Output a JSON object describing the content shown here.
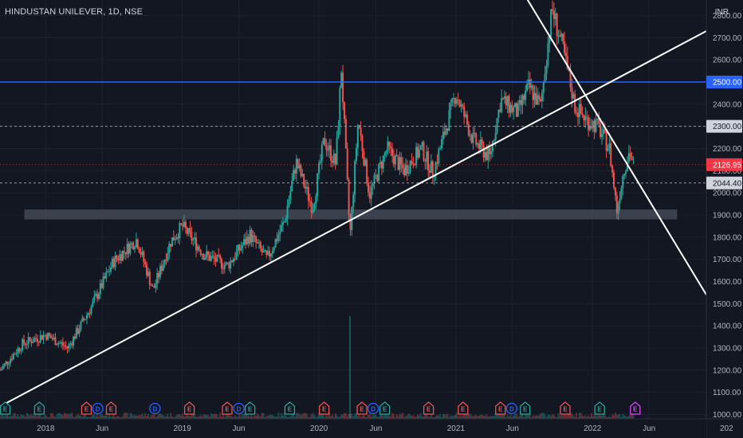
{
  "header": {
    "symbol_title": "HINDUSTAN UNILEVER, 1D, NSE",
    "currency": "INR"
  },
  "colors": {
    "background": "#131722",
    "grid": "#1e222d",
    "up": "#26a69a",
    "down": "#ef5350",
    "axis_text": "#b2b5be",
    "trendline": "#ffffff",
    "horizontal_line": "#2962ff",
    "support_zone": "#4a4f5c",
    "dashed_level": "#9598a1",
    "last_price_badge": "#f23645"
  },
  "chart_data": {
    "type": "candlestick",
    "symbol": "HINDUSTAN UNILEVER",
    "interval": "1D",
    "exchange": "NSE",
    "currency": "INR",
    "y_axis": {
      "ticks": [
        "1000.00",
        "1100.00",
        "1200.00",
        "1300.00",
        "1400.00",
        "1500.00",
        "1600.00",
        "1700.00",
        "1800.00",
        "1900.00",
        "2000.00",
        "2100.00",
        "2200.00",
        "2300.00",
        "2400.00",
        "2500.00",
        "2600.00",
        "2700.00",
        "2800.00"
      ],
      "range": [
        980,
        2870
      ]
    },
    "x_axis": {
      "ticks": [
        "2018",
        "Jun",
        "2019",
        "Jun",
        "2020",
        "Jun",
        "2021",
        "Jun",
        "2022",
        "Jun",
        "202"
      ],
      "range": [
        "2017-09-01",
        "2022-11-01"
      ]
    },
    "price_series": [
      {
        "date": "2017-09-01",
        "close": 1200
      },
      {
        "date": "2017-11-01",
        "close": 1320
      },
      {
        "date": "2018-01-01",
        "close": 1360
      },
      {
        "date": "2018-03-01",
        "close": 1300
      },
      {
        "date": "2018-05-01",
        "close": 1480
      },
      {
        "date": "2018-07-01",
        "close": 1690
      },
      {
        "date": "2018-09-01",
        "close": 1790
      },
      {
        "date": "2018-10-15",
        "close": 1560
      },
      {
        "date": "2018-12-01",
        "close": 1780
      },
      {
        "date": "2019-01-01",
        "close": 1850
      },
      {
        "date": "2019-03-01",
        "close": 1720
      },
      {
        "date": "2019-05-01",
        "close": 1670
      },
      {
        "date": "2019-07-01",
        "close": 1810
      },
      {
        "date": "2019-08-15",
        "close": 1700
      },
      {
        "date": "2019-10-01",
        "close": 1870
      },
      {
        "date": "2019-11-01",
        "close": 2140
      },
      {
        "date": "2019-12-15",
        "close": 1930
      },
      {
        "date": "2020-01-15",
        "close": 2240
      },
      {
        "date": "2020-02-15",
        "close": 2130
      },
      {
        "date": "2020-03-01",
        "close": 2560
      },
      {
        "date": "2020-03-24",
        "close": 1800
      },
      {
        "date": "2020-04-15",
        "close": 2330
      },
      {
        "date": "2020-05-15",
        "close": 1990
      },
      {
        "date": "2020-07-01",
        "close": 2200
      },
      {
        "date": "2020-08-15",
        "close": 2100
      },
      {
        "date": "2020-10-01",
        "close": 2200
      },
      {
        "date": "2020-11-01",
        "close": 2090
      },
      {
        "date": "2021-01-01",
        "close": 2450
      },
      {
        "date": "2021-02-15",
        "close": 2240
      },
      {
        "date": "2021-04-01",
        "close": 2160
      },
      {
        "date": "2021-05-01",
        "close": 2420
      },
      {
        "date": "2021-06-15",
        "close": 2360
      },
      {
        "date": "2021-07-15",
        "close": 2480
      },
      {
        "date": "2021-08-15",
        "close": 2390
      },
      {
        "date": "2021-09-15",
        "close": 2830
      },
      {
        "date": "2021-10-15",
        "close": 2640
      },
      {
        "date": "2021-11-15",
        "close": 2390
      },
      {
        "date": "2021-12-15",
        "close": 2330
      },
      {
        "date": "2022-01-15",
        "close": 2300
      },
      {
        "date": "2022-02-15",
        "close": 2200
      },
      {
        "date": "2022-03-07",
        "close": 1920
      },
      {
        "date": "2022-03-25",
        "close": 2100
      },
      {
        "date": "2022-04-10",
        "close": 2190
      },
      {
        "date": "2022-04-20",
        "close": 2126.95
      }
    ],
    "drawings": [
      {
        "kind": "trendline",
        "from": {
          "date": "2017-08-25",
          "price": 1030
        },
        "to": {
          "date": "2022-11-01",
          "price": 2730
        },
        "color": "#ffffff"
      },
      {
        "kind": "trendline",
        "from": {
          "date": "2021-07-01",
          "price": 2900
        },
        "to": {
          "date": "2022-11-01",
          "price": 1540
        },
        "color": "#ffffff"
      },
      {
        "kind": "horizontal_line",
        "price": 2500,
        "label": "2500.00",
        "color": "#2962ff"
      },
      {
        "kind": "horizontal_line_dashed",
        "price": 2300,
        "label": "2300.00"
      },
      {
        "kind": "horizontal_line_dashed",
        "price": 2044.4,
        "label": "2044.40"
      },
      {
        "kind": "rectangle_zone",
        "from_date": "2017-11-05",
        "to_date": "2022-08-15",
        "price_low": 1880,
        "price_high": 1925
      }
    ],
    "last_price": {
      "value": 2126.95,
      "label": "2126.95"
    },
    "events": [
      {
        "date": "2017-09-15",
        "letter": "E",
        "type": "earnings"
      },
      {
        "date": "2017-12-15",
        "letter": "E",
        "type": "earnings"
      },
      {
        "date": "2018-04-20",
        "letter": "E",
        "type": "earnings"
      },
      {
        "date": "2018-05-20",
        "letter": "D",
        "type": "dividend"
      },
      {
        "date": "2018-06-25",
        "letter": "E",
        "type": "earnings"
      },
      {
        "date": "2018-10-20",
        "letter": "D",
        "type": "dividend"
      },
      {
        "date": "2019-01-20",
        "letter": "E",
        "type": "earnings"
      },
      {
        "date": "2019-05-01",
        "letter": "E",
        "type": "earnings"
      },
      {
        "date": "2019-06-01",
        "letter": "D",
        "type": "dividend"
      },
      {
        "date": "2019-07-01",
        "letter": "E",
        "type": "earnings"
      },
      {
        "date": "2019-10-15",
        "letter": "E",
        "type": "earnings"
      },
      {
        "date": "2020-01-15",
        "letter": "E",
        "type": "earnings"
      },
      {
        "date": "2020-04-25",
        "letter": "E",
        "type": "earnings"
      },
      {
        "date": "2020-05-25",
        "letter": "D",
        "type": "dividend"
      },
      {
        "date": "2020-06-25",
        "letter": "E",
        "type": "earnings"
      },
      {
        "date": "2020-10-20",
        "letter": "E",
        "type": "earnings"
      },
      {
        "date": "2021-01-20",
        "letter": "E",
        "type": "earnings"
      },
      {
        "date": "2021-04-30",
        "letter": "E",
        "type": "earnings"
      },
      {
        "date": "2021-05-30",
        "letter": "D",
        "type": "dividend"
      },
      {
        "date": "2021-07-05",
        "letter": "E",
        "type": "earnings"
      },
      {
        "date": "2021-10-20",
        "letter": "E",
        "type": "earnings"
      },
      {
        "date": "2022-01-20",
        "letter": "E",
        "type": "earnings"
      },
      {
        "date": "2022-04-25",
        "letter": "E",
        "type": "upcoming_earnings"
      }
    ]
  }
}
